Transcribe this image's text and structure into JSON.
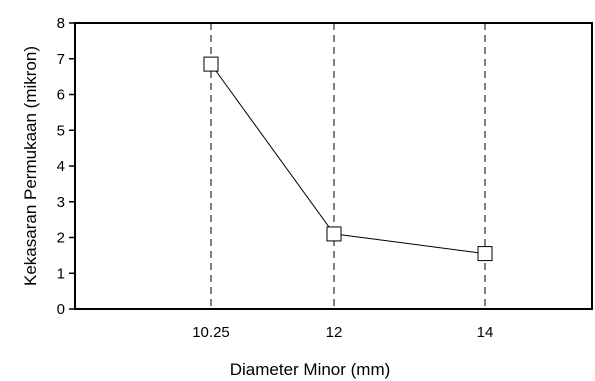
{
  "chart_data": {
    "type": "line",
    "title": "",
    "xlabel": "Diameter Minor  (mm)",
    "ylabel": "Kekasaran Permukaan (mikron)",
    "x": [
      "10.25",
      "12",
      "14"
    ],
    "series": [
      {
        "values": [
          6.85,
          2.1,
          1.55
        ],
        "color": "#000000",
        "marker": "square"
      }
    ],
    "ylim": [
      0,
      8
    ],
    "yticks": [
      "0",
      "1",
      "2",
      "3",
      "4",
      "5",
      "6",
      "7",
      "8"
    ],
    "vertical_gridlines": "dashed",
    "legend": "none"
  }
}
